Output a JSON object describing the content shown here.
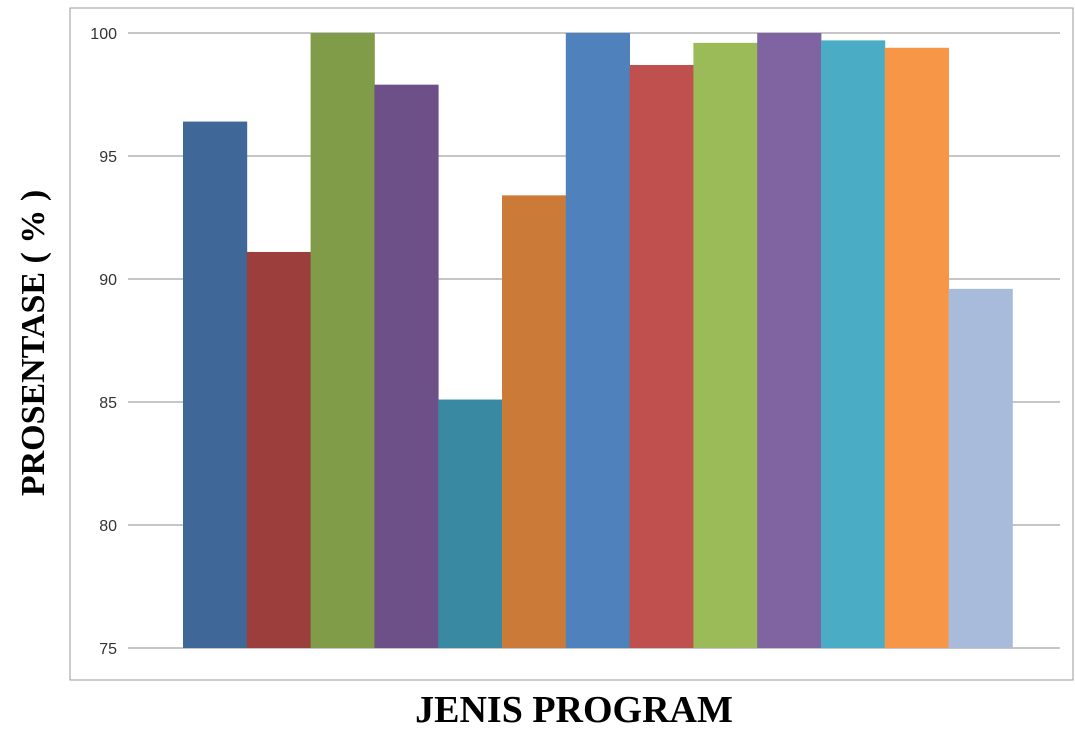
{
  "chart_data": {
    "type": "bar",
    "xlabel": "JENIS PROGRAM",
    "ylabel": "PROSENTASE ( % )",
    "ylim": [
      75,
      100
    ],
    "yticks": [
      75,
      80,
      85,
      90,
      95,
      100
    ],
    "grid": true,
    "legend": "none",
    "values": [
      96.4,
      91.1,
      100,
      97.9,
      85.1,
      93.4,
      100,
      98.7,
      99.6,
      100,
      99.7,
      99.4,
      89.6
    ],
    "colors": [
      "#3F6898",
      "#9C3E3C",
      "#809C48",
      "#6C5087",
      "#3A89A3",
      "#CB7A37",
      "#4F81BD",
      "#C0504D",
      "#9BBB59",
      "#8064A2",
      "#4BACC6",
      "#F79646",
      "#A9BBDA"
    ]
  }
}
